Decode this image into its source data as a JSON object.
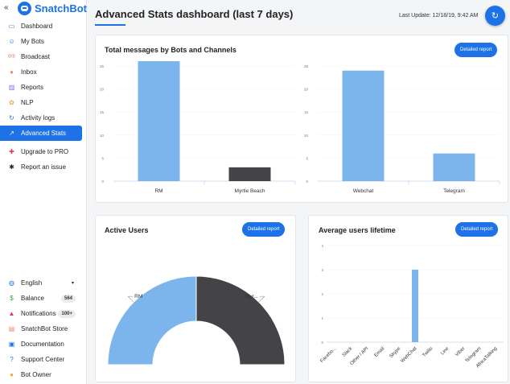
{
  "brand": {
    "collapse": "«",
    "name": "SnatchBot"
  },
  "nav": [
    {
      "label": "Dashboard",
      "icon": "dashboard-icon",
      "glyph": "▭",
      "color": "#1c72e6",
      "active": false
    },
    {
      "label": "My Bots",
      "icon": "bot-icon",
      "glyph": "☺",
      "color": "#1c72e6",
      "active": false
    },
    {
      "label": "Broadcast",
      "icon": "broadcast-icon",
      "glyph": "((•))",
      "color": "#e5533d",
      "active": false
    },
    {
      "label": "Inbox",
      "icon": "inbox-icon",
      "glyph": "●",
      "color": "#f08a6c",
      "active": false
    },
    {
      "label": "Reports",
      "icon": "reports-icon",
      "glyph": "▥",
      "color": "#7b6fe0",
      "active": false
    },
    {
      "label": "NLP",
      "icon": "nlp-icon",
      "glyph": "✿",
      "color": "#f0a63c",
      "active": false
    },
    {
      "label": "Activity logs",
      "icon": "activity-logs-icon",
      "glyph": "↻",
      "color": "#1c72e6",
      "active": false
    },
    {
      "label": "Advanced Stats",
      "icon": "advanced-stats-icon",
      "glyph": "↗",
      "color": "#ffffff",
      "active": true
    }
  ],
  "nav_secondary": [
    {
      "label": "Upgrade to PRO",
      "icon": "upgrade-icon",
      "glyph": "✚",
      "color": "#e5334d"
    },
    {
      "label": "Report an issue",
      "icon": "bug-icon",
      "glyph": "✱",
      "color": "#222222"
    }
  ],
  "nav_bottom": [
    {
      "label": "English",
      "icon": "globe-icon",
      "glyph": "◍",
      "color": "#1c72e6",
      "badge": "",
      "caret": "▾"
    },
    {
      "label": "Balance",
      "icon": "dollar-icon",
      "glyph": "$",
      "color": "#2aa84a",
      "badge": "564",
      "caret": ""
    },
    {
      "label": "Notifications",
      "icon": "bell-icon",
      "glyph": "▲",
      "color": "#e5334d",
      "badge": "100+",
      "caret": ""
    },
    {
      "label": "SnatchBot Store",
      "icon": "store-icon",
      "glyph": "▤",
      "color": "#f08a6c",
      "badge": "",
      "caret": ""
    },
    {
      "label": "Documentation",
      "icon": "documentation-icon",
      "glyph": "▣",
      "color": "#1c72e6",
      "badge": "",
      "caret": ""
    },
    {
      "label": "Support Center",
      "icon": "support-icon",
      "glyph": "?",
      "color": "#1c72e6",
      "badge": "",
      "caret": ""
    },
    {
      "label": "Bot Owner",
      "icon": "user-icon",
      "glyph": "●",
      "color": "#f0a63c",
      "badge": "",
      "caret": ""
    }
  ],
  "header": {
    "title": "Advanced Stats dashboard (last 7 days)",
    "last_update": "Last Update: 12/18/19, 9:42 AM",
    "refresh_glyph": "↻"
  },
  "cards": {
    "messages": {
      "title": "Total messages by Bots and Channels",
      "button": "Detailed report"
    },
    "active_users": {
      "title": "Active Users",
      "button": "Detailed report"
    },
    "lifetime": {
      "title": "Average users lifetime",
      "button": "Detailed report"
    }
  },
  "colors": {
    "accent": "#1c72e6",
    "bar_blue": "#7cb5ec",
    "bar_dark": "#434348"
  },
  "chart_data": [
    {
      "type": "bar",
      "title": "Total messages by Bots",
      "categories": [
        "RM",
        "Myrtle Beach"
      ],
      "values": [
        27,
        3
      ],
      "colors": [
        "#7cb5ec",
        "#434348"
      ],
      "ylim": [
        0,
        25
      ],
      "yticks": [
        0,
        5,
        10,
        15,
        20,
        25
      ]
    },
    {
      "type": "bar",
      "title": "Total messages by Channels",
      "categories": [
        "Webchat",
        "Telegram"
      ],
      "values": [
        24,
        6
      ],
      "colors": [
        "#7cb5ec",
        "#7cb5ec"
      ],
      "ylim": [
        0,
        25
      ],
      "yticks": [
        0,
        5,
        10,
        15,
        20,
        25
      ]
    },
    {
      "type": "pie",
      "title": "Active Users",
      "labels": [
        "RM",
        "Myr..."
      ],
      "values": [
        50,
        50
      ],
      "colors": [
        "#7cb5ec",
        "#434348"
      ]
    },
    {
      "type": "bar",
      "title": "Average users lifetime",
      "categories": [
        "Facebo...",
        "Slack",
        "Other / API",
        "Email",
        "Skype",
        "WebChat",
        "Twilio",
        "Line",
        "Viber",
        "Telegram",
        "AfricaTalking"
      ],
      "values": [
        0,
        0,
        0,
        0,
        0,
        3,
        0,
        0,
        0,
        0,
        0
      ],
      "ylim": [
        0,
        4
      ],
      "yticks": [
        0,
        1,
        2,
        3,
        4
      ]
    }
  ]
}
